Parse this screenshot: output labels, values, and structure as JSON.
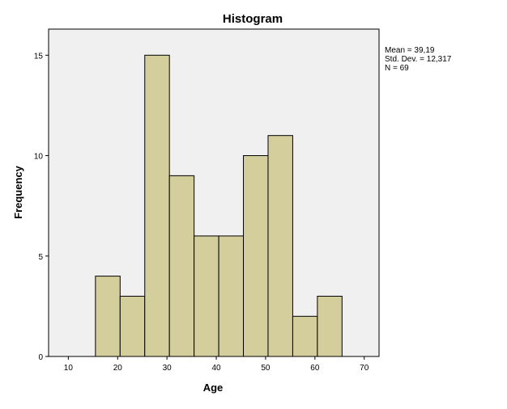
{
  "chart_data": {
    "type": "bar",
    "title": "Histogram",
    "xlabel": "Age",
    "ylabel": "Frequency",
    "xlim": [
      6,
      73
    ],
    "ylim": [
      0,
      16.3
    ],
    "x_ticks": [
      "10",
      "20",
      "30",
      "40",
      "50",
      "60",
      "70"
    ],
    "y_ticks": [
      "0",
      "5",
      "10",
      "15"
    ],
    "bins": [
      {
        "start": 15.5,
        "end": 20.5,
        "value": 4
      },
      {
        "start": 20.5,
        "end": 25.5,
        "value": 3
      },
      {
        "start": 25.5,
        "end": 30.5,
        "value": 15
      },
      {
        "start": 30.5,
        "end": 35.5,
        "value": 9
      },
      {
        "start": 35.5,
        "end": 40.5,
        "value": 6
      },
      {
        "start": 40.5,
        "end": 45.5,
        "value": 6
      },
      {
        "start": 45.5,
        "end": 50.5,
        "value": 10
      },
      {
        "start": 50.5,
        "end": 55.5,
        "value": 11
      },
      {
        "start": 55.5,
        "end": 60.5,
        "value": 2
      },
      {
        "start": 60.5,
        "end": 65.5,
        "value": 3
      }
    ],
    "stats": [
      "Mean = 39,19",
      "Std. Dev. = 12,317",
      "N = 69"
    ],
    "colors": {
      "bar_fill": "#d3ce9c",
      "bar_stroke": "#000000",
      "plot_background": "#f0f0f0"
    },
    "grid": false,
    "legend_placement": "right"
  }
}
